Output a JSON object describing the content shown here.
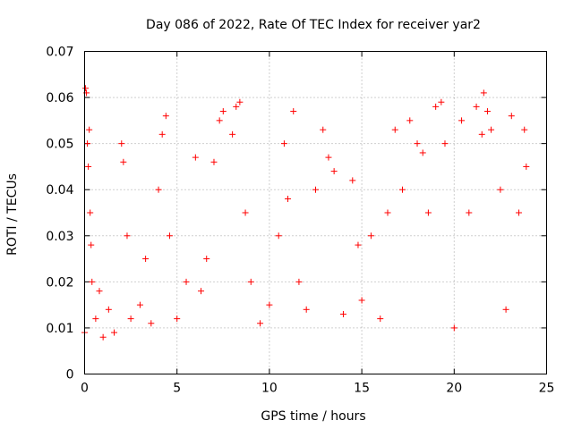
{
  "chart_data": {
    "type": "scatter",
    "title": "Day 086 of 2022, Rate Of TEC Index for receiver yar2",
    "xlabel": "GPS time / hours",
    "ylabel": "ROTI / TECUs",
    "xlim": [
      0,
      25
    ],
    "ylim": [
      0,
      0.07
    ],
    "xticks": [
      "0",
      "5",
      "10",
      "15",
      "20",
      "25"
    ],
    "yticks": [
      "0",
      "0.01",
      "0.02",
      "0.03",
      "0.04",
      "0.05",
      "0.06",
      "0.07"
    ],
    "grid": true,
    "marker": "+",
    "color": "#ff0000",
    "series": [
      {
        "x": [
          0.0,
          0.05,
          0.1,
          0.15,
          0.2,
          0.25,
          0.3,
          0.35,
          0.4,
          0.6,
          0.8,
          1.0,
          1.3,
          1.6,
          2.0,
          2.1,
          2.3,
          2.5,
          3.0,
          3.3,
          3.6,
          4.0,
          4.2,
          4.4,
          4.6,
          5.0,
          5.5,
          6.0,
          6.3,
          6.6,
          7.0,
          7.3,
          7.5,
          8.0,
          8.2,
          8.4,
          8.7,
          9.0,
          9.5,
          10.0,
          10.5,
          10.8,
          11.0,
          11.3,
          11.6,
          12.0,
          12.5,
          12.9,
          13.2,
          13.5,
          14.0,
          14.5,
          14.8,
          15.0,
          15.5,
          16.0,
          16.4,
          16.8,
          17.2,
          17.6,
          18.0,
          18.3,
          18.6,
          19.0,
          19.3,
          19.5,
          20.0,
          20.4,
          20.8,
          21.2,
          21.5,
          21.6,
          21.8,
          22.0,
          22.5,
          22.8,
          23.1,
          23.5,
          23.8,
          23.9
        ],
        "y": [
          0.009,
          0.062,
          0.061,
          0.05,
          0.045,
          0.053,
          0.035,
          0.028,
          0.02,
          0.012,
          0.018,
          0.008,
          0.014,
          0.009,
          0.05,
          0.046,
          0.03,
          0.012,
          0.015,
          0.025,
          0.011,
          0.04,
          0.052,
          0.056,
          0.03,
          0.012,
          0.02,
          0.047,
          0.018,
          0.025,
          0.046,
          0.055,
          0.057,
          0.052,
          0.058,
          0.059,
          0.035,
          0.02,
          0.011,
          0.015,
          0.03,
          0.05,
          0.038,
          0.057,
          0.02,
          0.014,
          0.04,
          0.053,
          0.047,
          0.044,
          0.013,
          0.042,
          0.028,
          0.016,
          0.03,
          0.012,
          0.035,
          0.053,
          0.04,
          0.055,
          0.05,
          0.048,
          0.035,
          0.058,
          0.059,
          0.05,
          0.01,
          0.055,
          0.035,
          0.058,
          0.052,
          0.061,
          0.057,
          0.053,
          0.04,
          0.014,
          0.056,
          0.035,
          0.053,
          0.045
        ]
      }
    ]
  }
}
